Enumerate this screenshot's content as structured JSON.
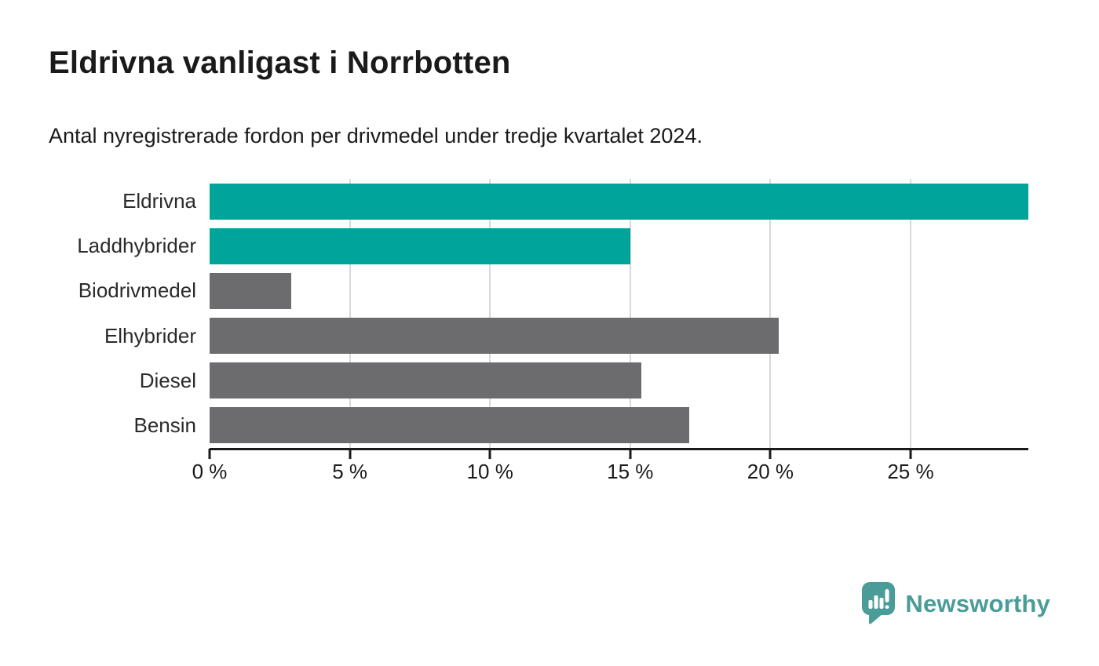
{
  "header": {
    "title": "Eldrivna vanligast i Norrbotten",
    "subtitle": "Antal nyregistrerade fordon per drivmedel under tredje kvartalet 2024."
  },
  "chart_data": {
    "type": "bar",
    "orientation": "horizontal",
    "title": "Eldrivna vanligast i Norrbotten",
    "subtitle": "Antal nyregistrerade fordon per drivmedel under tredje kvartalet 2024.",
    "categories": [
      "Eldrivna",
      "Laddhybrider",
      "Biodrivmedel",
      "Elhybrider",
      "Diesel",
      "Bensin"
    ],
    "values": [
      29.2,
      15.0,
      2.9,
      20.3,
      15.4,
      17.1
    ],
    "unit": "%",
    "bar_colors": [
      "#00a49b",
      "#00a49b",
      "#6c6c6f",
      "#6c6c6f",
      "#6c6c6f",
      "#6c6c6f"
    ],
    "xlim": [
      0,
      29.2
    ],
    "xticks": [
      0,
      5,
      10,
      15,
      20,
      25
    ],
    "xtick_labels": [
      "0 %",
      "5 %",
      "10 %",
      "15 %",
      "20 %",
      "25 %"
    ],
    "xlabel": "",
    "ylabel": "",
    "grid": "vertical-only",
    "legend": "none"
  },
  "footer": {
    "brand": "Newsworthy",
    "logo_icon": "speech-bubble-bar-chart-exclamation"
  },
  "colors": {
    "accent_teal": "#00a49b",
    "bar_gray": "#6c6c6f",
    "gridline": "#d9d9d9",
    "axis": "#1a1a1a",
    "logo_teal": "#4a9c98",
    "background": "#ffffff"
  }
}
